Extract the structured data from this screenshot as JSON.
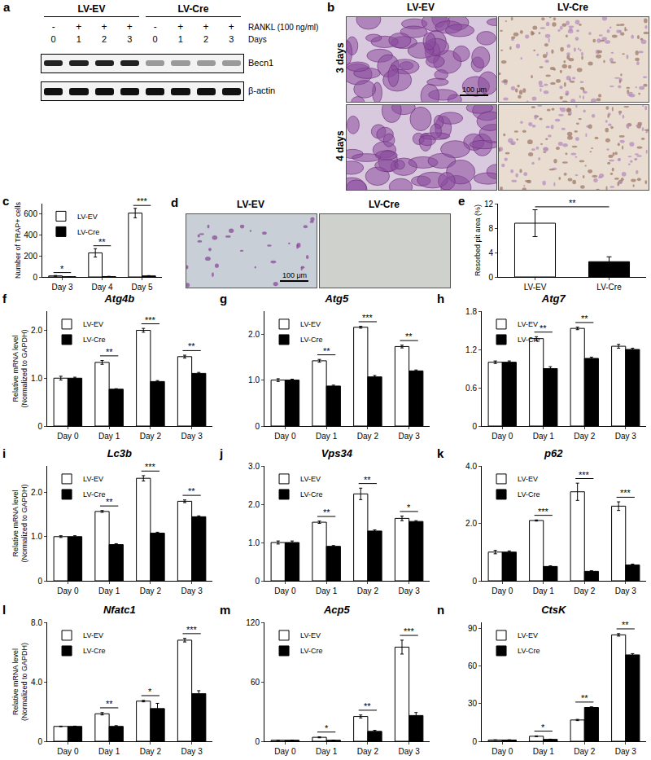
{
  "blot": {
    "panel": "a",
    "groups": [
      "LV-EV",
      "LV-Cre"
    ],
    "treatment_label": "RANKL (100 ng/ml)",
    "treatment": [
      "-",
      "+",
      "+",
      "+",
      "-",
      "+",
      "+",
      "+"
    ],
    "days_label": "Days",
    "days": [
      0,
      1,
      2,
      3,
      0,
      1,
      2,
      3
    ],
    "bands": [
      "Becn1",
      "β-actin"
    ]
  },
  "micrographs": {
    "panel": "b",
    "columns": [
      "LV-EV",
      "LV-Cre"
    ],
    "rows": [
      "3 days",
      "4 days"
    ],
    "scale_bar": "100 μm"
  },
  "pits": {
    "panel": "d",
    "columns": [
      "LV-EV",
      "LV-Cre"
    ],
    "scale_bar": "100 μm"
  },
  "chart_data": [
    {
      "panel": "c",
      "type": "bar",
      "y_label": "Number of TRAP+ cells",
      "categories": [
        "Day 3",
        "Day 4",
        "Day 5"
      ],
      "series": [
        {
          "name": "LV-EV",
          "color": "#ffffff",
          "values": [
            10,
            230,
            610
          ],
          "errors": [
            4,
            40,
            45
          ]
        },
        {
          "name": "LV-Cre",
          "color": "#000000",
          "values": [
            2,
            4,
            10
          ],
          "errors": [
            1,
            2,
            3
          ]
        }
      ],
      "significance": [
        "*",
        "**",
        "***"
      ],
      "ylim": [
        0,
        700
      ],
      "yticks": [
        0,
        200,
        400,
        600
      ],
      "legend": "top-left"
    },
    {
      "panel": "e",
      "type": "bar",
      "y_label": "Resorbed pit area (%)",
      "categories": [
        "LV-EV",
        "LV-Cre"
      ],
      "values": [
        8.8,
        2.5
      ],
      "errors": [
        2.2,
        0.8
      ],
      "colors": [
        "#ffffff",
        "#000000"
      ],
      "significance": "**",
      "ylim": [
        0,
        12
      ],
      "yticks": [
        0,
        4,
        8,
        12
      ]
    },
    {
      "panel": "f",
      "type": "bar",
      "title": "Atg4b",
      "y_label": "Relative mRNA level\n(Normalized to GAPDH)",
      "categories": [
        "Day 0",
        "Day 1",
        "Day 2",
        "Day 3"
      ],
      "series": [
        {
          "name": "LV-EV",
          "color": "#ffffff",
          "values": [
            1.0,
            1.33,
            2.0,
            1.45
          ],
          "errors": [
            0.04,
            0.04,
            0.04,
            0.03
          ]
        },
        {
          "name": "LV-Cre",
          "color": "#000000",
          "values": [
            1.0,
            0.77,
            0.93,
            1.1
          ],
          "errors": [
            0.02,
            0.01,
            0.02,
            0.02
          ]
        }
      ],
      "significance": [
        null,
        "**",
        "***",
        "**"
      ],
      "ylim": [
        0,
        2.4
      ],
      "yticks": [
        0,
        {
          "value": 1,
          "label": "1.0"
        },
        {
          "value": 2,
          "label": "2.0"
        }
      ],
      "legend": "top-left"
    },
    {
      "panel": "g",
      "type": "bar",
      "title": "Atg5",
      "categories": [
        "Day 0",
        "Day 1",
        "Day 2",
        "Day 3"
      ],
      "series": [
        {
          "name": "LV-EV",
          "color": "#ffffff",
          "values": [
            1.0,
            1.42,
            2.15,
            1.73
          ],
          "errors": [
            0.03,
            0.03,
            0.02,
            0.03
          ]
        },
        {
          "name": "LV-Cre",
          "color": "#000000",
          "values": [
            1.0,
            0.87,
            1.07,
            1.2
          ],
          "errors": [
            0.02,
            0.02,
            0.03,
            0.02
          ]
        }
      ],
      "significance": [
        null,
        "**",
        "***",
        "**"
      ],
      "ylim": [
        0,
        2.5
      ],
      "yticks": [
        0,
        {
          "value": 1,
          "label": "1.0"
        },
        {
          "value": 2,
          "label": "2.0"
        }
      ],
      "legend": "top-left"
    },
    {
      "panel": "h",
      "type": "bar",
      "title": "Atg7",
      "categories": [
        "Day 0",
        "Day 1",
        "Day 2",
        "Day 3"
      ],
      "series": [
        {
          "name": "LV-EV",
          "color": "#ffffff",
          "values": [
            1.0,
            1.37,
            1.53,
            1.25
          ],
          "errors": [
            0.02,
            0.03,
            0.02,
            0.03
          ]
        },
        {
          "name": "LV-Cre",
          "color": "#000000",
          "values": [
            1.0,
            0.9,
            1.06,
            1.2
          ],
          "errors": [
            0.02,
            0.03,
            0.02,
            0.02
          ]
        }
      ],
      "significance": [
        null,
        "**",
        "**",
        null
      ],
      "ylim": [
        0,
        1.8
      ],
      "yticks": [
        0,
        0.6,
        1.2,
        1.8
      ],
      "legend": "top-left"
    },
    {
      "panel": "i",
      "type": "bar",
      "title": "Lc3b",
      "y_label": "Relative mRNA level\n(Normalized to GAPDH)",
      "categories": [
        "Day 0",
        "Day 1",
        "Day 2",
        "Day 3"
      ],
      "series": [
        {
          "name": "LV-EV",
          "color": "#ffffff",
          "values": [
            1.0,
            1.57,
            2.32,
            1.8
          ],
          "errors": [
            0.02,
            0.02,
            0.06,
            0.03
          ]
        },
        {
          "name": "LV-Cre",
          "color": "#000000",
          "values": [
            1.0,
            0.82,
            1.08,
            1.45
          ],
          "errors": [
            0.02,
            0.02,
            0.02,
            0.02
          ]
        }
      ],
      "significance": [
        null,
        "**",
        "***",
        "**"
      ],
      "ylim": [
        0,
        2.6
      ],
      "yticks": [
        0,
        {
          "value": 1,
          "label": "1.0"
        },
        {
          "value": 2,
          "label": "2.0"
        }
      ],
      "legend": "top-left"
    },
    {
      "panel": "j",
      "type": "bar",
      "title": "Vps34",
      "categories": [
        "Day 0",
        "Day 1",
        "Day 2",
        "Day 3"
      ],
      "series": [
        {
          "name": "LV-EV",
          "color": "#ffffff",
          "values": [
            1.0,
            1.53,
            2.27,
            1.63
          ],
          "errors": [
            0.04,
            0.03,
            0.15,
            0.06
          ]
        },
        {
          "name": "LV-Cre",
          "color": "#000000",
          "values": [
            1.0,
            0.9,
            1.3,
            1.55
          ],
          "errors": [
            0.04,
            0.02,
            0.03,
            0.02
          ]
        }
      ],
      "significance": [
        null,
        "**",
        "**",
        "*"
      ],
      "ylim": [
        0,
        3
      ],
      "yticks": [
        0,
        {
          "value": 1,
          "label": "1.0"
        },
        {
          "value": 2,
          "label": "2.0"
        },
        {
          "value": 3,
          "label": "3.0"
        }
      ],
      "legend": "top-left"
    },
    {
      "panel": "k",
      "type": "bar",
      "title": "p62",
      "categories": [
        "Day 0",
        "Day 1",
        "Day 2",
        "Day 3"
      ],
      "series": [
        {
          "name": "LV-EV",
          "color": "#ffffff",
          "values": [
            1.0,
            2.1,
            3.1,
            2.6
          ],
          "errors": [
            0.06,
            0.02,
            0.3,
            0.15
          ]
        },
        {
          "name": "LV-Cre",
          "color": "#000000",
          "values": [
            1.0,
            0.5,
            0.33,
            0.55
          ],
          "errors": [
            0.04,
            0.02,
            0.02,
            0.03
          ]
        }
      ],
      "significance": [
        null,
        "***",
        "***",
        "***"
      ],
      "ylim": [
        0,
        4
      ],
      "yticks": [
        0,
        {
          "value": 2,
          "label": "2.0"
        },
        {
          "value": 4,
          "label": "4.0"
        }
      ],
      "legend": "top-left"
    },
    {
      "panel": "l",
      "type": "bar",
      "title": "Nfatc1",
      "y_label": "Relative mRNA level\n(Normalized to GAPDH)",
      "categories": [
        "Day 0",
        "Day 1",
        "Day 2",
        "Day 3"
      ],
      "series": [
        {
          "name": "LV-EV",
          "color": "#ffffff",
          "values": [
            1.0,
            1.85,
            2.7,
            6.8
          ],
          "errors": [
            0.02,
            0.08,
            0.05,
            0.12
          ]
        },
        {
          "name": "LV-Cre",
          "color": "#000000",
          "values": [
            1.0,
            1.0,
            2.2,
            3.2
          ],
          "errors": [
            0.02,
            0.05,
            0.35,
            0.2
          ]
        }
      ],
      "significance": [
        null,
        "**",
        "*",
        "***"
      ],
      "ylim": [
        0,
        8
      ],
      "yticks": [
        0,
        {
          "value": 4,
          "label": "4.0"
        },
        {
          "value": 8,
          "label": "8.0"
        }
      ],
      "legend": "top-left"
    },
    {
      "panel": "m",
      "type": "bar",
      "title": "Acp5",
      "categories": [
        "Day 0",
        "Day 1",
        "Day 2",
        "Day 3"
      ],
      "series": [
        {
          "name": "LV-EV",
          "color": "#ffffff",
          "values": [
            1,
            4,
            25,
            95
          ],
          "errors": [
            0.2,
            0.5,
            1.5,
            7
          ]
        },
        {
          "name": "LV-Cre",
          "color": "#000000",
          "values": [
            1,
            1,
            10,
            26
          ],
          "errors": [
            0.2,
            0.2,
            1,
            3
          ]
        }
      ],
      "significance": [
        null,
        "*",
        "**",
        "***"
      ],
      "ylim": [
        0,
        120
      ],
      "yticks": [
        0,
        60,
        120
      ],
      "legend": "top-left"
    },
    {
      "panel": "n",
      "type": "bar",
      "title": "CtsK",
      "categories": [
        "Day 0",
        "Day 1",
        "Day 2",
        "Day 3"
      ],
      "series": [
        {
          "name": "LV-EV",
          "color": "#ffffff",
          "values": [
            1,
            4,
            17,
            85
          ],
          "errors": [
            0.2,
            0.3,
            0.5,
            1
          ]
        },
        {
          "name": "LV-Cre",
          "color": "#000000",
          "values": [
            1,
            1.5,
            27,
            69
          ],
          "errors": [
            0.2,
            0.2,
            0.5,
            1
          ]
        }
      ],
      "significance": [
        null,
        "*",
        "**",
        "**"
      ],
      "ylim": [
        0,
        95
      ],
      "yticks": [
        0,
        30,
        60,
        90
      ],
      "legend": "top-left"
    }
  ]
}
